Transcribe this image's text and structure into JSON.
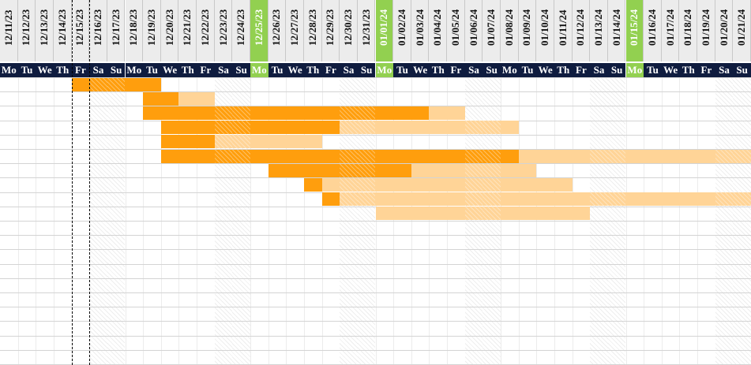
{
  "timeline": {
    "dates": [
      "12/11/23",
      "12/12/23",
      "12/13/23",
      "12/14/23",
      "12/15/23",
      "12/16/23",
      "12/17/23",
      "12/18/23",
      "12/19/23",
      "12/20/23",
      "12/21/23",
      "12/22/23",
      "12/23/23",
      "12/24/23",
      "12/25/23",
      "12/26/23",
      "12/27/23",
      "12/28/23",
      "12/29/23",
      "12/30/23",
      "12/31/23",
      "01/01/24",
      "01/02/24",
      "01/03/24",
      "01/04/24",
      "01/05/24",
      "01/06/24",
      "01/07/24",
      "01/08/24",
      "01/09/24",
      "01/10/24",
      "01/11/24",
      "01/12/24",
      "01/13/24",
      "01/14/24",
      "01/15/24",
      "01/16/24",
      "01/17/24",
      "01/18/24",
      "01/19/24",
      "01/20/24",
      "01/21/24"
    ],
    "days": [
      "Mo",
      "Tu",
      "We",
      "Th",
      "Fr",
      "Sa",
      "Su",
      "Mo",
      "Tu",
      "We",
      "Th",
      "Fr",
      "Sa",
      "Su",
      "Mo",
      "Tu",
      "We",
      "Th",
      "Fr",
      "Sa",
      "Su",
      "Mo",
      "Tu",
      "We",
      "Th",
      "Fr",
      "Sa",
      "Su",
      "Mo",
      "Tu",
      "We",
      "Th",
      "Fr",
      "Sa",
      "Su",
      "Mo",
      "Tu",
      "We",
      "Th",
      "Fr",
      "Sa",
      "Su"
    ],
    "holidays": [
      "12/25/23",
      "01/01/24",
      "01/15/24"
    ],
    "weekend_days": [
      "Sa",
      "Su"
    ]
  },
  "colors": {
    "header_bg": "#0f1c3f",
    "holiday": "#92d050",
    "actual_bar": "#ff9e0d",
    "planned_bar": "#ffd497"
  },
  "tasks": [
    {
      "planned_start": "12/15/23",
      "planned_end": "12/19/23",
      "actual_start": "12/15/23",
      "actual_end": "12/19/23"
    },
    {
      "planned_start": "12/19/23",
      "planned_end": "12/22/23",
      "actual_start": "12/19/23",
      "actual_end": "12/20/23"
    },
    {
      "planned_start": "12/19/23",
      "planned_end": "01/05/24",
      "actual_start": "12/19/23",
      "actual_end": "01/03/24"
    },
    {
      "planned_start": "12/20/23",
      "planned_end": "01/08/24",
      "actual_start": "12/20/23",
      "actual_end": "12/29/23"
    },
    {
      "planned_start": "12/20/23",
      "planned_end": "12/28/23",
      "actual_start": "12/20/23",
      "actual_end": "12/22/23"
    },
    {
      "planned_start": "12/20/23",
      "planned_end": "01/21/24",
      "actual_start": "12/20/23",
      "actual_end": "01/08/24"
    },
    {
      "planned_start": "12/26/23",
      "planned_end": "01/09/24",
      "actual_start": "12/26/23",
      "actual_end": "01/02/24"
    },
    {
      "planned_start": "12/28/23",
      "planned_end": "01/11/24",
      "actual_start": "12/28/23",
      "actual_end": "12/28/23"
    },
    {
      "planned_start": "12/29/23",
      "planned_end": "01/21/24",
      "actual_start": "12/29/23",
      "actual_end": "12/29/23"
    },
    {
      "planned_start": "01/01/24",
      "planned_end": "01/12/24",
      "actual_start": null,
      "actual_end": null
    }
  ],
  "today": "12/15/23"
}
